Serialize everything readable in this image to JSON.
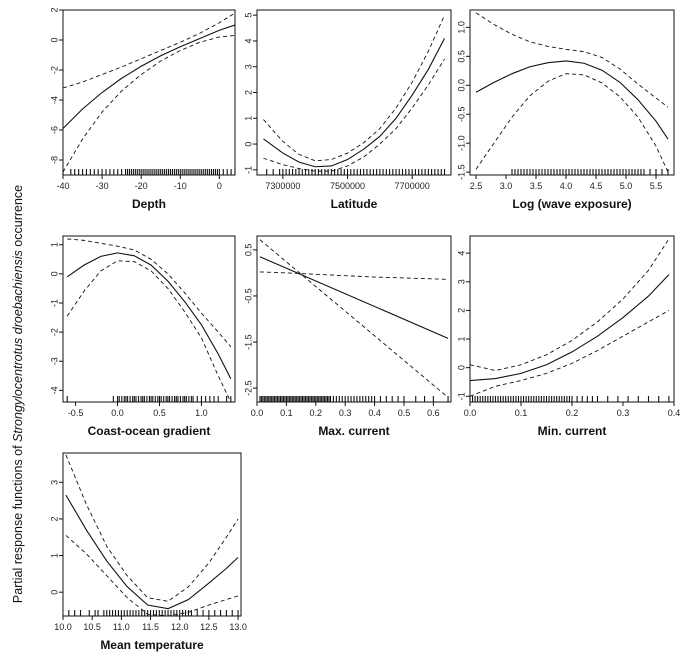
{
  "figure": {
    "y_label_prefix": "Partial response functions of ",
    "y_label_species": "Strongylocentrotus droebachiensis",
    "y_label_suffix": " occurrence"
  },
  "chart_data": [
    {
      "type": "line",
      "xlabel": "Depth",
      "xlim": [
        -40,
        4
      ],
      "ylim": [
        -9,
        2
      ],
      "xticks": [
        -40,
        -30,
        -20,
        -10,
        0
      ],
      "xtick_labels": [
        "-40",
        "-30",
        "-20",
        "-10",
        "0"
      ],
      "yticks": [
        -8,
        -6,
        -4,
        -2,
        0,
        2
      ],
      "ytick_labels": [
        "-8",
        "-6",
        "-4",
        "-2",
        "0",
        "2"
      ],
      "series": [
        {
          "role": "fit",
          "x": [
            -40,
            -35,
            -30,
            -25,
            -20,
            -15,
            -10,
            -5,
            0,
            4
          ],
          "y": [
            -5.9,
            -4.6,
            -3.5,
            -2.55,
            -1.75,
            -1.05,
            -0.45,
            0.1,
            0.65,
            1.0
          ]
        },
        {
          "role": "upper",
          "x": [
            -40,
            -35,
            -30,
            -25,
            -20,
            -15,
            -10,
            -5,
            0,
            4
          ],
          "y": [
            -3.2,
            -2.8,
            -2.3,
            -1.8,
            -1.25,
            -0.7,
            -0.15,
            0.45,
            1.15,
            1.8
          ]
        },
        {
          "role": "lower",
          "x": [
            -40,
            -35,
            -30,
            -25,
            -20,
            -15,
            -10,
            -5,
            0,
            4
          ],
          "y": [
            -8.8,
            -6.6,
            -4.8,
            -3.4,
            -2.3,
            -1.4,
            -0.7,
            -0.15,
            0.2,
            0.3
          ]
        }
      ],
      "rug": [
        -40,
        -38,
        -37,
        -36,
        -35,
        -34,
        -33,
        -32,
        -31,
        -30,
        -29,
        -28,
        -27,
        -26,
        -25,
        -24,
        -23.5,
        -23,
        -22.5,
        -22,
        -21.5,
        -21,
        -20.5,
        -20,
        -19.5,
        -19,
        -18.5,
        -18,
        -17.5,
        -17,
        -16.5,
        -16,
        -15.5,
        -15,
        -14.5,
        -14,
        -13.5,
        -13,
        -12.5,
        -12,
        -11.5,
        -11,
        -10.5,
        -10,
        -9.5,
        -9,
        -8.5,
        -8,
        -7.5,
        -7,
        -6.5,
        -6,
        -5.5,
        -5,
        -4.5,
        -4,
        -3.5,
        -3,
        -2.5,
        -2,
        -1.5,
        -1,
        -0.5,
        0,
        1,
        2,
        3,
        4
      ]
    },
    {
      "type": "line",
      "xlabel": "Latitude",
      "xlim": [
        7220000,
        7820000
      ],
      "ylim": [
        -1.2,
        5.2
      ],
      "xticks": [
        7300000,
        7500000,
        7700000
      ],
      "xtick_labels": [
        "7300000",
        "7500000",
        "7700000"
      ],
      "yticks": [
        -1,
        0,
        1,
        2,
        3,
        4,
        5
      ],
      "ytick_labels": [
        "-1",
        "0",
        "1",
        "2",
        "3",
        "4",
        "5"
      ],
      "series": [
        {
          "role": "fit",
          "x": [
            7240000,
            7300000,
            7350000,
            7400000,
            7450000,
            7500000,
            7550000,
            7600000,
            7650000,
            7700000,
            7750000,
            7800000
          ],
          "y": [
            0.2,
            -0.35,
            -0.7,
            -0.88,
            -0.85,
            -0.6,
            -0.2,
            0.3,
            1.0,
            1.9,
            2.9,
            4.1
          ]
        },
        {
          "role": "upper",
          "x": [
            7240000,
            7300000,
            7350000,
            7400000,
            7450000,
            7500000,
            7550000,
            7600000,
            7650000,
            7700000,
            7750000,
            7800000
          ],
          "y": [
            0.95,
            0.1,
            -0.4,
            -0.65,
            -0.6,
            -0.35,
            0.05,
            0.6,
            1.4,
            2.4,
            3.6,
            5.0
          ]
        },
        {
          "role": "lower",
          "x": [
            7240000,
            7300000,
            7350000,
            7400000,
            7450000,
            7500000,
            7550000,
            7600000,
            7650000,
            7700000,
            7750000,
            7800000
          ],
          "y": [
            -0.55,
            -0.8,
            -0.95,
            -1.05,
            -1.05,
            -0.85,
            -0.5,
            0.0,
            0.6,
            1.4,
            2.3,
            3.3
          ]
        }
      ],
      "rug": [
        7250000,
        7270000,
        7290000,
        7300000,
        7310000,
        7320000,
        7330000,
        7340000,
        7350000,
        7360000,
        7370000,
        7380000,
        7390000,
        7400000,
        7410000,
        7420000,
        7430000,
        7440000,
        7450000,
        7460000,
        7470000,
        7480000,
        7490000,
        7500000,
        7510000,
        7520000,
        7530000,
        7540000,
        7550000,
        7560000,
        7570000,
        7580000,
        7590000,
        7600000,
        7610000,
        7620000,
        7630000,
        7640000,
        7650000,
        7660000,
        7670000,
        7680000,
        7690000,
        7700000,
        7710000,
        7720000,
        7730000,
        7740000,
        7750000,
        7760000,
        7770000,
        7780000,
        7790000,
        7800000
      ]
    },
    {
      "type": "line",
      "xlabel": "Log (wave exposure)",
      "xlim": [
        2.4,
        5.8
      ],
      "ylim": [
        -1.55,
        1.3
      ],
      "xticks": [
        2.5,
        3.0,
        3.5,
        4.0,
        4.5,
        5.0,
        5.5
      ],
      "xtick_labels": [
        "2.5",
        "3.0",
        "3.5",
        "4.0",
        "4.5",
        "5.0",
        "5.5"
      ],
      "yticks": [
        -1.5,
        -1.0,
        -0.5,
        0.0,
        0.5,
        1.0
      ],
      "ytick_labels": [
        "-1.5",
        "-1.0",
        "-0.5",
        "0.0",
        "0.5",
        "1.0"
      ],
      "series": [
        {
          "role": "fit",
          "x": [
            2.5,
            2.8,
            3.1,
            3.4,
            3.7,
            4.0,
            4.3,
            4.6,
            4.9,
            5.2,
            5.5,
            5.7
          ],
          "y": [
            -0.12,
            0.05,
            0.2,
            0.32,
            0.39,
            0.42,
            0.38,
            0.26,
            0.05,
            -0.25,
            -0.62,
            -0.93
          ]
        },
        {
          "role": "upper",
          "x": [
            2.5,
            2.8,
            3.1,
            3.4,
            3.7,
            4.0,
            4.3,
            4.6,
            4.9,
            5.2,
            5.5,
            5.7
          ],
          "y": [
            1.25,
            1.05,
            0.88,
            0.75,
            0.67,
            0.62,
            0.58,
            0.48,
            0.28,
            0.02,
            -0.22,
            -0.38
          ]
        },
        {
          "role": "lower",
          "x": [
            2.5,
            2.8,
            3.1,
            3.4,
            3.7,
            4.0,
            4.3,
            4.6,
            4.9,
            5.2,
            5.5,
            5.7
          ],
          "y": [
            -1.45,
            -1.0,
            -0.55,
            -0.18,
            0.07,
            0.2,
            0.18,
            0.04,
            -0.2,
            -0.55,
            -1.05,
            -1.5
          ]
        }
      ],
      "rug": [
        3.1,
        3.15,
        3.2,
        3.25,
        3.3,
        3.35,
        3.4,
        3.45,
        3.5,
        3.55,
        3.6,
        3.65,
        3.7,
        3.75,
        3.8,
        3.85,
        3.9,
        3.95,
        4.0,
        4.05,
        4.1,
        4.15,
        4.2,
        4.25,
        4.3,
        4.35,
        4.4,
        4.45,
        4.5,
        4.55,
        4.6,
        4.65,
        4.7,
        4.75,
        4.8,
        4.85,
        4.9,
        4.95,
        5.0,
        5.05,
        5.1,
        5.15,
        5.2,
        5.25,
        5.3,
        5.4,
        5.5,
        5.6,
        5.7
      ]
    },
    {
      "type": "line",
      "xlabel": "Coast-ocean gradient",
      "xlim": [
        -0.65,
        1.4
      ],
      "ylim": [
        -4.4,
        1.3
      ],
      "xticks": [
        -0.5,
        0.0,
        0.5,
        1.0
      ],
      "xtick_labels": [
        "-0.5",
        "0.0",
        "0.5",
        "1.0"
      ],
      "yticks": [
        -4,
        -3,
        -2,
        -1,
        0,
        1
      ],
      "ytick_labels": [
        "-4",
        "-3",
        "-2",
        "-1",
        "0",
        "1"
      ],
      "series": [
        {
          "role": "fit",
          "x": [
            -0.6,
            -0.4,
            -0.2,
            0.0,
            0.2,
            0.4,
            0.6,
            0.8,
            1.0,
            1.2,
            1.35
          ],
          "y": [
            -0.1,
            0.3,
            0.6,
            0.72,
            0.62,
            0.3,
            -0.25,
            -0.95,
            -1.75,
            -2.75,
            -3.6
          ]
        },
        {
          "role": "upper",
          "x": [
            -0.6,
            -0.4,
            -0.2,
            0.0,
            0.2,
            0.4,
            0.6,
            0.8,
            1.0,
            1.2,
            1.35
          ],
          "y": [
            1.2,
            1.15,
            1.05,
            0.95,
            0.82,
            0.5,
            0.0,
            -0.65,
            -1.35,
            -2.0,
            -2.5
          ]
        },
        {
          "role": "lower",
          "x": [
            -0.6,
            -0.4,
            -0.2,
            0.0,
            0.2,
            0.4,
            0.6,
            0.8,
            1.0,
            1.2,
            1.35
          ],
          "y": [
            -1.45,
            -0.6,
            0.1,
            0.45,
            0.42,
            0.1,
            -0.5,
            -1.3,
            -2.2,
            -3.5,
            -4.4
          ]
        }
      ],
      "rug": [
        -0.6,
        -0.05,
        0.0,
        0.02,
        0.05,
        0.08,
        0.1,
        0.12,
        0.15,
        0.18,
        0.2,
        0.22,
        0.25,
        0.28,
        0.3,
        0.32,
        0.35,
        0.38,
        0.4,
        0.42,
        0.45,
        0.48,
        0.5,
        0.52,
        0.55,
        0.58,
        0.6,
        0.62,
        0.65,
        0.68,
        0.7,
        0.72,
        0.75,
        0.78,
        0.8,
        0.82,
        0.85,
        0.88,
        0.9,
        0.95,
        1.0,
        1.05,
        1.1,
        1.15,
        1.2,
        1.3,
        1.35
      ]
    },
    {
      "type": "line",
      "xlabel": "Max. current",
      "xlim": [
        0.0,
        0.66
      ],
      "ylim": [
        -2.8,
        0.8
      ],
      "xticks": [
        0.0,
        0.1,
        0.2,
        0.3,
        0.4,
        0.5,
        0.6
      ],
      "xtick_labels": [
        "0.0",
        "0.1",
        "0.2",
        "0.3",
        "0.4",
        "0.5",
        "0.6"
      ],
      "yticks": [
        -2.5,
        -1.5,
        -0.5,
        0.5
      ],
      "ytick_labels": [
        "-2.5",
        "-1.5",
        "-0.5",
        "0.5"
      ],
      "series": [
        {
          "role": "fit",
          "x": [
            0.01,
            0.65
          ],
          "y": [
            0.35,
            -1.42
          ]
        },
        {
          "role": "upper",
          "x": [
            0.01,
            0.1,
            0.2,
            0.3,
            0.4,
            0.5,
            0.65
          ],
          "y": [
            0.02,
            0.0,
            -0.03,
            -0.06,
            -0.09,
            -0.11,
            -0.14
          ]
        },
        {
          "role": "lower",
          "x": [
            0.01,
            0.65
          ],
          "y": [
            0.72,
            -2.7
          ]
        }
      ],
      "rug": [
        0.01,
        0.015,
        0.02,
        0.025,
        0.03,
        0.035,
        0.04,
        0.045,
        0.05,
        0.055,
        0.06,
        0.065,
        0.07,
        0.075,
        0.08,
        0.085,
        0.09,
        0.095,
        0.1,
        0.105,
        0.11,
        0.115,
        0.12,
        0.125,
        0.13,
        0.135,
        0.14,
        0.145,
        0.15,
        0.155,
        0.16,
        0.165,
        0.17,
        0.175,
        0.18,
        0.185,
        0.19,
        0.195,
        0.2,
        0.205,
        0.21,
        0.215,
        0.22,
        0.225,
        0.23,
        0.235,
        0.24,
        0.245,
        0.25,
        0.26,
        0.27,
        0.28,
        0.29,
        0.3,
        0.31,
        0.32,
        0.33,
        0.34,
        0.35,
        0.36,
        0.37,
        0.38,
        0.39,
        0.4,
        0.42,
        0.44,
        0.46,
        0.48,
        0.5,
        0.54,
        0.57,
        0.6,
        0.65
      ]
    },
    {
      "type": "line",
      "xlabel": "Min. current",
      "xlim": [
        0.0,
        0.4
      ],
      "ylim": [
        -1.2,
        4.6
      ],
      "xticks": [
        0.0,
        0.1,
        0.2,
        0.3,
        0.4
      ],
      "xtick_labels": [
        "0.0",
        "0.1",
        "0.2",
        "0.3",
        "0.4"
      ],
      "yticks": [
        -1,
        0,
        1,
        2,
        3,
        4
      ],
      "ytick_labels": [
        "-1",
        "0",
        "1",
        "2",
        "3",
        "4"
      ],
      "series": [
        {
          "role": "fit",
          "x": [
            0.0,
            0.05,
            0.1,
            0.15,
            0.2,
            0.25,
            0.3,
            0.35,
            0.39
          ],
          "y": [
            -0.45,
            -0.38,
            -0.2,
            0.1,
            0.55,
            1.1,
            1.75,
            2.5,
            3.25
          ]
        },
        {
          "role": "upper",
          "x": [
            0.0,
            0.05,
            0.1,
            0.15,
            0.2,
            0.25,
            0.3,
            0.35,
            0.39
          ],
          "y": [
            0.1,
            -0.1,
            0.1,
            0.45,
            0.95,
            1.6,
            2.4,
            3.4,
            4.5
          ]
        },
        {
          "role": "lower",
          "x": [
            0.0,
            0.05,
            0.1,
            0.15,
            0.2,
            0.25,
            0.3,
            0.35,
            0.39
          ],
          "y": [
            -1.0,
            -0.65,
            -0.45,
            -0.2,
            0.15,
            0.6,
            1.1,
            1.6,
            2.0
          ]
        }
      ],
      "rug": [
        0.0,
        0.005,
        0.01,
        0.015,
        0.02,
        0.025,
        0.03,
        0.035,
        0.04,
        0.045,
        0.05,
        0.055,
        0.06,
        0.065,
        0.07,
        0.075,
        0.08,
        0.085,
        0.09,
        0.095,
        0.1,
        0.105,
        0.11,
        0.115,
        0.12,
        0.125,
        0.13,
        0.135,
        0.14,
        0.145,
        0.15,
        0.155,
        0.16,
        0.165,
        0.17,
        0.175,
        0.18,
        0.185,
        0.19,
        0.195,
        0.2,
        0.21,
        0.22,
        0.23,
        0.24,
        0.25,
        0.27,
        0.29,
        0.31,
        0.33,
        0.35,
        0.37,
        0.39
      ]
    },
    {
      "type": "line",
      "xlabel": "Mean temperature",
      "xlim": [
        10.0,
        13.05
      ],
      "ylim": [
        -0.65,
        3.8
      ],
      "xticks": [
        10.0,
        10.5,
        11.0,
        11.5,
        12.0,
        12.5,
        13.0
      ],
      "xtick_labels": [
        "10.0",
        "10.5",
        "11.0",
        "11.5",
        "12.0",
        "12.5",
        "13.0"
      ],
      "yticks": [
        0,
        1,
        2,
        3
      ],
      "ytick_labels": [
        "0",
        "1",
        "2",
        "3"
      ],
      "series": [
        {
          "role": "fit",
          "x": [
            10.05,
            10.4,
            10.75,
            11.1,
            11.45,
            11.8,
            12.15,
            12.5,
            12.8,
            13.0
          ],
          "y": [
            2.65,
            1.7,
            0.85,
            0.15,
            -0.35,
            -0.45,
            -0.2,
            0.25,
            0.65,
            0.95
          ]
        },
        {
          "role": "upper",
          "x": [
            10.05,
            10.4,
            10.75,
            11.1,
            11.45,
            11.8,
            12.15,
            12.5,
            12.8,
            13.0
          ],
          "y": [
            3.75,
            2.4,
            1.25,
            0.45,
            -0.15,
            -0.25,
            0.15,
            0.8,
            1.5,
            2.0
          ]
        },
        {
          "role": "lower",
          "x": [
            10.05,
            10.4,
            10.75,
            11.1,
            11.45,
            11.8,
            12.15,
            12.5,
            12.8,
            13.0
          ],
          "y": [
            1.55,
            1.05,
            0.45,
            -0.15,
            -0.6,
            -0.65,
            -0.55,
            -0.35,
            -0.2,
            -0.1
          ]
        }
      ],
      "rug": [
        10.1,
        10.2,
        10.3,
        10.45,
        10.55,
        10.6,
        10.7,
        10.75,
        10.8,
        10.85,
        10.9,
        10.95,
        11.0,
        11.05,
        11.1,
        11.15,
        11.2,
        11.25,
        11.3,
        11.35,
        11.4,
        11.45,
        11.5,
        11.55,
        11.6,
        11.65,
        11.7,
        11.75,
        11.8,
        11.85,
        11.9,
        11.95,
        12.0,
        12.05,
        12.1,
        12.15,
        12.2,
        12.3,
        12.4,
        12.5,
        12.6,
        12.7,
        12.8,
        12.9,
        13.0
      ]
    }
  ]
}
